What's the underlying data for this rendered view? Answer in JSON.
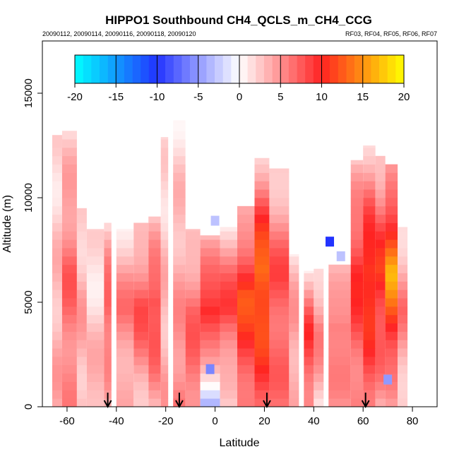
{
  "chart_data": {
    "type": "heatmap",
    "title": "HIPPO1 Southbound CH4_QCLS_m_CH4_CCG",
    "subtitle_left": "20090112, 20090114, 20090116, 20090118, 20090120",
    "subtitle_right": "RF03, RF04, RF05, RF06, RF07",
    "xlabel": "Latitude",
    "ylabel": "Altitude (m)",
    "xlim": [
      -70,
      90
    ],
    "ylim": [
      0,
      17500
    ],
    "xticks": [
      -60,
      -40,
      -20,
      0,
      20,
      40,
      60,
      80
    ],
    "yticks": [
      0,
      5000,
      10000,
      15000
    ],
    "colorbar": {
      "range": [
        -20,
        20
      ],
      "ticks": [
        -20,
        -15,
        -10,
        -5,
        0,
        5,
        10,
        15,
        20
      ],
      "stops": [
        {
          "v": -20,
          "color": "#00ffff"
        },
        {
          "v": -10,
          "color": "#2233ff"
        },
        {
          "v": 0,
          "color": "#ffffff"
        },
        {
          "v": 10,
          "color": "#ff2222"
        },
        {
          "v": 20,
          "color": "#ffff00"
        }
      ]
    },
    "arrows_latitude": [
      -43.5,
      -14.5,
      21,
      61
    ],
    "columns": [
      {
        "x0": -66,
        "x1": -62,
        "top": 13000,
        "base": 4,
        "upper": 3
      },
      {
        "x0": -62,
        "x1": -56,
        "top": 13200,
        "base": 5,
        "upper": 7
      },
      {
        "x0": -56,
        "x1": -52,
        "top": 9500,
        "base": 3,
        "upper": 4
      },
      {
        "x0": -52,
        "x1": -45,
        "top": 8500,
        "base": 4,
        "upper": 2
      },
      {
        "x0": -45,
        "x1": -42,
        "top": 8800,
        "base": 3,
        "upper": 8
      },
      {
        "x0": -40,
        "x1": -33,
        "top": 8500,
        "base": 3,
        "upper": 6
      },
      {
        "x0": -33,
        "x1": -27,
        "top": 8800,
        "base": 3,
        "upper": 8
      },
      {
        "x0": -27,
        "x1": -22,
        "top": 9100,
        "base": 4,
        "upper": 9
      },
      {
        "x0": -22,
        "x1": -19,
        "top": 12900,
        "base": 4,
        "upper": 3
      },
      {
        "x0": -17,
        "x1": -12,
        "top": 13700,
        "base": 6,
        "upper": 4
      },
      {
        "x0": -12,
        "x1": -6,
        "top": 8500,
        "base": 6,
        "upper": 7
      },
      {
        "x0": -6,
        "x1": 2,
        "top": 8200,
        "base": -4,
        "upper": 11
      },
      {
        "x0": 2,
        "x1": 9,
        "top": 8600,
        "base": 1,
        "upper": 9
      },
      {
        "x0": 9,
        "x1": 16,
        "top": 9600,
        "base": 6,
        "upper": 12
      },
      {
        "x0": 16,
        "x1": 22,
        "top": 11900,
        "base": 8,
        "upper": 14
      },
      {
        "x0": 22,
        "x1": 30,
        "top": 11400,
        "base": 6,
        "upper": 8
      },
      {
        "x0": 30,
        "x1": 34,
        "top": 7300,
        "base": 3,
        "upper": 5
      },
      {
        "x0": 36,
        "x1": 40,
        "top": 6500,
        "base": 6,
        "upper": 9
      },
      {
        "x0": 40,
        "x1": 44,
        "top": 6600,
        "base": 2,
        "upper": 6
      },
      {
        "x0": 46,
        "x1": 55,
        "top": 6800,
        "base": 4,
        "upper": 7
      },
      {
        "x0": 55,
        "x1": 60,
        "top": 11800,
        "base": 5,
        "upper": 10
      },
      {
        "x0": 60,
        "x1": 65,
        "top": 12500,
        "base": 7,
        "upper": 12
      },
      {
        "x0": 65,
        "x1": 69,
        "top": 12000,
        "base": 4,
        "upper": 11
      },
      {
        "x0": 69,
        "x1": 74,
        "top": 11600,
        "base": 3,
        "upper": 16
      },
      {
        "x0": 74,
        "x1": 78,
        "top": 8600,
        "base": 2,
        "upper": 6
      }
    ],
    "patches": [
      {
        "lat": 46.5,
        "alt": 7900,
        "value": -10
      },
      {
        "lat": -2,
        "alt": 1800,
        "value": -6
      },
      {
        "lat": 0,
        "alt": 8900,
        "value": -3
      },
      {
        "lat": 51,
        "alt": 7200,
        "value": -3
      },
      {
        "lat": 70,
        "alt": 1300,
        "value": -5
      }
    ]
  }
}
